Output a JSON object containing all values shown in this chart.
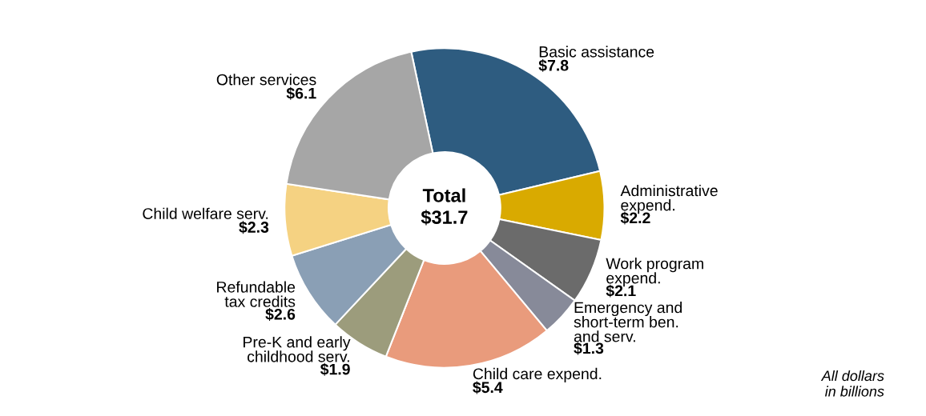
{
  "chart_data": {
    "type": "donut",
    "categories": [
      "Basic assistance",
      "Administrative\nexpend.",
      "Work program\nexpend.",
      "Emergency and\nshort-term ben.\nand serv.",
      "Child care expend.",
      "Pre-K and early\nchildhood serv.",
      "Refundable\ntax credits",
      "Child welfare serv.",
      "Other services"
    ],
    "values": [
      7.8,
      2.2,
      2.1,
      1.3,
      5.4,
      1.9,
      2.6,
      2.3,
      6.1
    ],
    "value_labels": [
      "$7.8",
      "$2.2",
      "$2.1",
      "$1.3",
      "$5.4",
      "$1.9",
      "$2.6",
      "$2.3",
      "$6.1"
    ],
    "colors": [
      "#2e5c80",
      "#d9aa00",
      "#6b6b6b",
      "#878a99",
      "#e99b7c",
      "#9c9c7c",
      "#8a9fb5",
      "#f5d282",
      "#a6a6a6"
    ],
    "annotations": [
      "Total\n$31.7",
      "All dollars\nin billions"
    ],
    "legend": false
  }
}
